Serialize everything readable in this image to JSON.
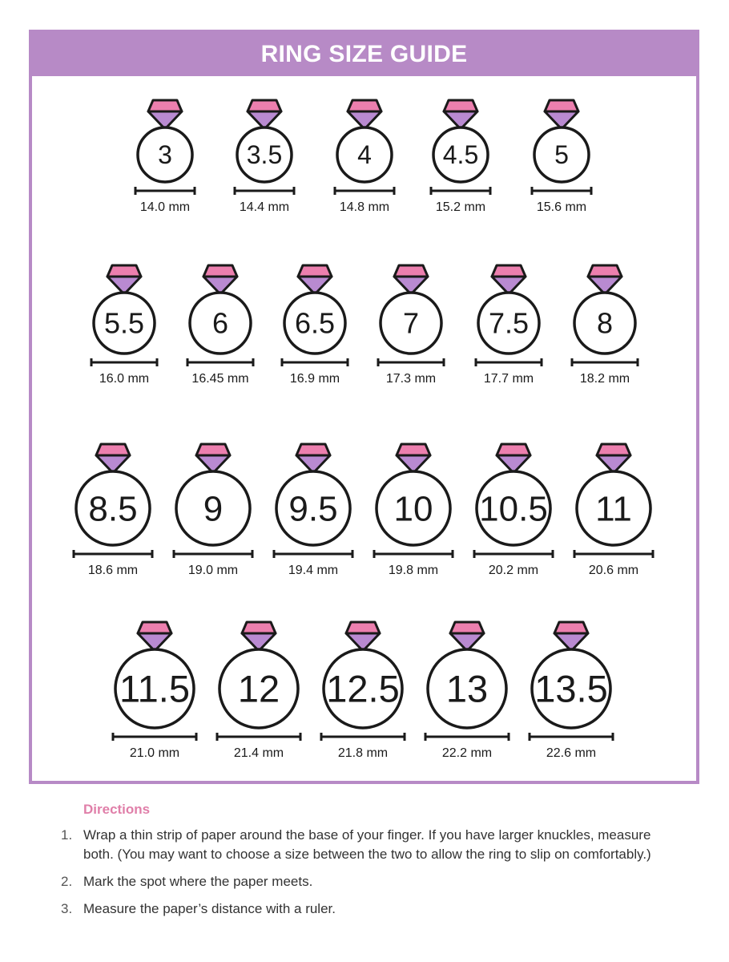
{
  "title": "RING SIZE GUIDE",
  "colors": {
    "frame": "#b78ac6",
    "gem_top": "#ec7fae",
    "gem_bottom": "#b98ad1",
    "accent_text": "#e07fa9"
  },
  "rows": [
    [
      {
        "size": "3",
        "mm": "14.0 mm"
      },
      {
        "size": "3.5",
        "mm": "14.4 mm"
      },
      {
        "size": "4",
        "mm": "14.8 mm"
      },
      {
        "size": "4.5",
        "mm": "15.2 mm"
      },
      {
        "size": "5",
        "mm": "15.6 mm"
      }
    ],
    [
      {
        "size": "5.5",
        "mm": "16.0 mm"
      },
      {
        "size": "6",
        "mm": "16.45 mm"
      },
      {
        "size": "6.5",
        "mm": "16.9 mm"
      },
      {
        "size": "7",
        "mm": "17.3 mm"
      },
      {
        "size": "7.5",
        "mm": "17.7 mm"
      },
      {
        "size": "8",
        "mm": "18.2 mm"
      }
    ],
    [
      {
        "size": "8.5",
        "mm": "18.6 mm"
      },
      {
        "size": "9",
        "mm": "19.0 mm"
      },
      {
        "size": "9.5",
        "mm": "19.4 mm"
      },
      {
        "size": "10",
        "mm": "19.8 mm"
      },
      {
        "size": "10.5",
        "mm": "20.2 mm"
      },
      {
        "size": "11",
        "mm": "20.6 mm"
      }
    ],
    [
      {
        "size": "11.5",
        "mm": "21.0 mm"
      },
      {
        "size": "12",
        "mm": "21.4 mm"
      },
      {
        "size": "12.5",
        "mm": "21.8 mm"
      },
      {
        "size": "13",
        "mm": "22.2 mm"
      },
      {
        "size": "13.5",
        "mm": "22.6 mm"
      }
    ]
  ],
  "directions": {
    "heading": "Directions",
    "steps": [
      {
        "num": "1.",
        "text": "Wrap a thin strip of paper around the base of your finger. If you have larger knuckles, measure both. (You may want to choose a size between the two to allow the ring to slip on comfortably.)"
      },
      {
        "num": "2.",
        "text": "Mark the spot where the paper meets."
      },
      {
        "num": "3.",
        "text": "Measure the paper’s distance with a ruler."
      }
    ]
  }
}
